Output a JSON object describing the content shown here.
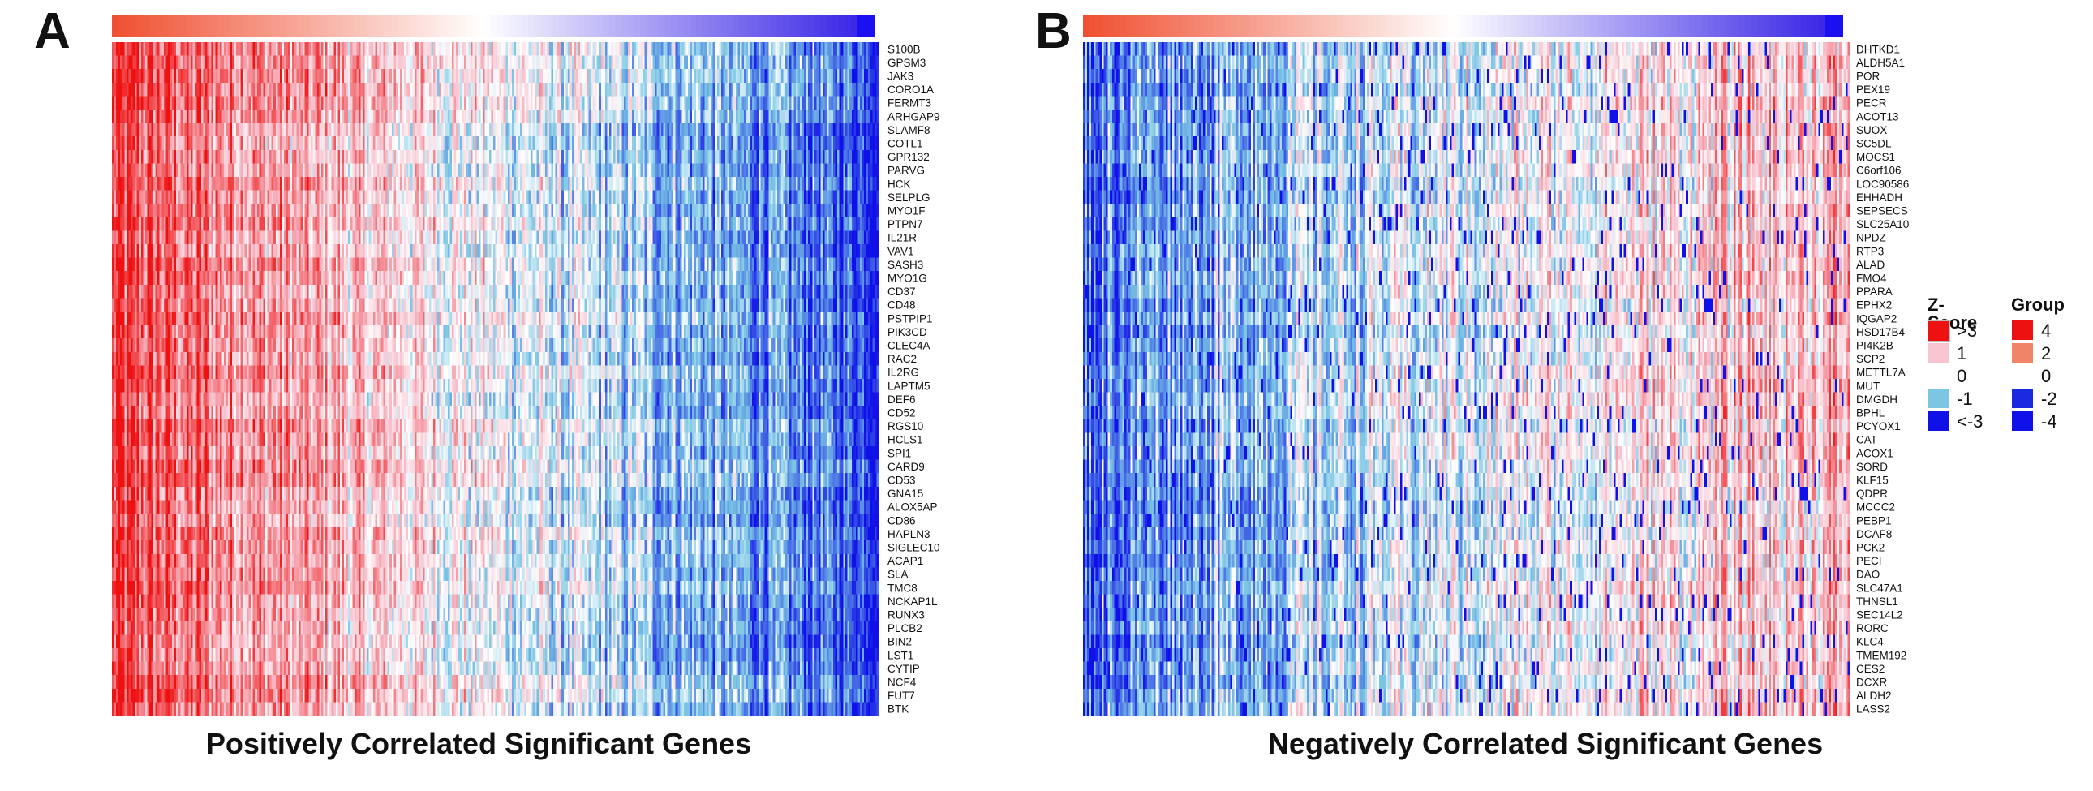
{
  "panels": [
    {
      "letter": "A",
      "caption": "Positively Correlated Significant Genes",
      "genes": [
        "S100B",
        "GPSM3",
        "JAK3",
        "CORO1A",
        "FERMT3",
        "ARHGAP9",
        "SLAMF8",
        "COTL1",
        "GPR132",
        "PARVG",
        "HCK",
        "SELPLG",
        "MYO1F",
        "PTPN7",
        "IL21R",
        "VAV1",
        "SASH3",
        "MYO1G",
        "CD37",
        "CD48",
        "PSTPIP1",
        "PIK3CD",
        "CLEC4A",
        "RAC2",
        "IL2RG",
        "LAPTM5",
        "DEF6",
        "CD52",
        "RGS10",
        "HCLS1",
        "SPI1",
        "CARD9",
        "CD53",
        "GNA15",
        "ALOX5AP",
        "CD86",
        "HAPLN3",
        "SIGLEC10",
        "ACAP1",
        "SLA",
        "TMC8",
        "NCKAP1L",
        "RUNX3",
        "PLCB2",
        "BIN2",
        "LST1",
        "CYTIP",
        "NCF4",
        "FUT7",
        "BTK"
      ]
    },
    {
      "letter": "B",
      "caption": "Negatively Correlated Significant Genes",
      "genes": [
        "DHTKD1",
        "ALDH5A1",
        "POR",
        "PEX19",
        "PECR",
        "ACOT13",
        "SUOX",
        "SC5DL",
        "MOCS1",
        "C6orf106",
        "LOC90586",
        "EHHADH",
        "SEPSECS",
        "SLC25A10",
        "NPDZ",
        "RTP3",
        "ALAD",
        "FMO4",
        "PPARA",
        "EPHX2",
        "IQGAP2",
        "HSD17B4",
        "PI4K2B",
        "SCP2",
        "METTL7A",
        "MUT",
        "DMGDH",
        "BPHL",
        "PCYOX1",
        "CAT",
        "ACOX1",
        "SORD",
        "KLF15",
        "QDPR",
        "MCCC2",
        "PEBP1",
        "DCAF8",
        "PCK2",
        "PECI",
        "DAO",
        "SLC47A1",
        "THNSL1",
        "SEC14L2",
        "RORC",
        "KLC4",
        "TMEM192",
        "CES2",
        "DCXR",
        "ALDH2",
        "LASS2"
      ]
    }
  ],
  "legend": {
    "zscore": {
      "title": "Z-Score",
      "items": [
        {
          "label": ">3",
          "color": "#ee1111"
        },
        {
          "label": "1",
          "color": "#f7c4d0"
        },
        {
          "label": "0",
          "color": "#ffffff"
        },
        {
          "label": "-1",
          "color": "#7cc6e4"
        },
        {
          "label": "<-3",
          "color": "#1010e8"
        }
      ]
    },
    "group": {
      "title": "Group",
      "items": [
        {
          "label": "4",
          "color": "#ee1111"
        },
        {
          "label": "2",
          "color": "#f08466"
        },
        {
          "label": "0",
          "color": "#ffffff"
        },
        {
          "label": "-2",
          "color": "#1a2ae0"
        },
        {
          "label": "-4",
          "color": "#1010e8"
        }
      ]
    }
  },
  "chart_data": [
    {
      "type": "heatmap",
      "title": "Positively Correlated Significant Genes",
      "rows_count": 50,
      "columns_count": 370,
      "value_range": [
        -3,
        3
      ],
      "group_bar_range": [
        4,
        -4
      ],
      "pattern": "high z-scores (red) for samples on the left, low z-scores (blue) for samples on the right"
    },
    {
      "type": "heatmap",
      "title": "Negatively Correlated Significant Genes",
      "rows_count": 50,
      "columns_count": 370,
      "value_range": [
        -3,
        3
      ],
      "group_bar_range": [
        4,
        -4
      ],
      "pattern": "low z-scores (blue) for samples on the left, mixed pink/red on the right"
    }
  ]
}
